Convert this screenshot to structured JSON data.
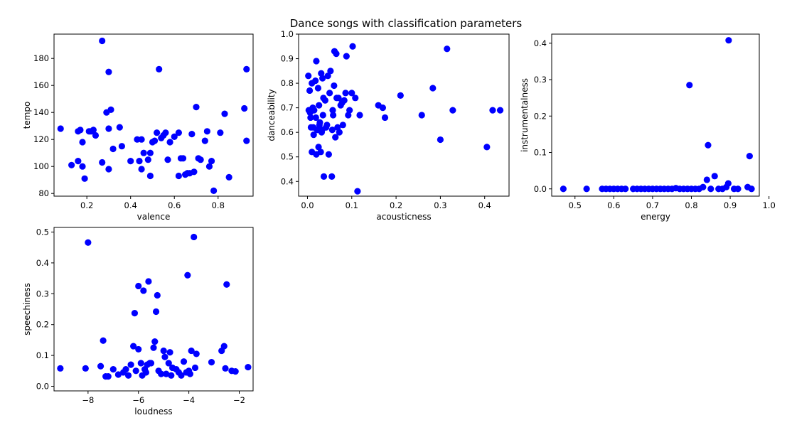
{
  "figure": {
    "title": "Dance songs with classification parameters",
    "marker_color": "#0000ff"
  },
  "chart_data": [
    {
      "type": "scatter",
      "xlabel": "valence",
      "ylabel": "tempo",
      "xlim": [
        0.05,
        0.96
      ],
      "ylim": [
        78,
        198
      ],
      "xticks": [
        0.2,
        0.4,
        0.6,
        0.8
      ],
      "xtick_labels": [
        "0.2",
        "0.4",
        "0.6",
        "0.8"
      ],
      "yticks": [
        80,
        100,
        120,
        140,
        160,
        180
      ],
      "ytick_labels": [
        "80",
        "100",
        "120",
        "140",
        "160",
        "180"
      ],
      "points": [
        [
          0.08,
          128
        ],
        [
          0.13,
          101
        ],
        [
          0.16,
          104
        ],
        [
          0.16,
          126
        ],
        [
          0.17,
          127
        ],
        [
          0.18,
          100
        ],
        [
          0.18,
          118
        ],
        [
          0.19,
          91
        ],
        [
          0.21,
          126
        ],
        [
          0.22,
          126
        ],
        [
          0.23,
          127
        ],
        [
          0.24,
          123
        ],
        [
          0.27,
          193
        ],
        [
          0.27,
          103
        ],
        [
          0.29,
          140
        ],
        [
          0.3,
          170
        ],
        [
          0.3,
          128
        ],
        [
          0.3,
          98
        ],
        [
          0.31,
          142
        ],
        [
          0.32,
          113
        ],
        [
          0.35,
          129
        ],
        [
          0.36,
          115
        ],
        [
          0.4,
          104
        ],
        [
          0.43,
          120
        ],
        [
          0.44,
          104
        ],
        [
          0.45,
          120
        ],
        [
          0.45,
          98
        ],
        [
          0.46,
          110
        ],
        [
          0.48,
          105
        ],
        [
          0.49,
          110
        ],
        [
          0.49,
          93
        ],
        [
          0.5,
          118
        ],
        [
          0.51,
          119
        ],
        [
          0.52,
          125
        ],
        [
          0.53,
          172
        ],
        [
          0.54,
          121
        ],
        [
          0.55,
          123
        ],
        [
          0.56,
          125
        ],
        [
          0.57,
          105
        ],
        [
          0.58,
          118
        ],
        [
          0.6,
          122
        ],
        [
          0.62,
          125
        ],
        [
          0.62,
          93
        ],
        [
          0.63,
          106
        ],
        [
          0.64,
          106
        ],
        [
          0.65,
          94
        ],
        [
          0.66,
          95
        ],
        [
          0.67,
          95
        ],
        [
          0.68,
          124
        ],
        [
          0.69,
          96
        ],
        [
          0.7,
          144
        ],
        [
          0.71,
          106
        ],
        [
          0.72,
          105
        ],
        [
          0.74,
          119
        ],
        [
          0.75,
          126
        ],
        [
          0.76,
          100
        ],
        [
          0.77,
          104
        ],
        [
          0.78,
          82
        ],
        [
          0.81,
          125
        ],
        [
          0.83,
          139
        ],
        [
          0.85,
          92
        ],
        [
          0.92,
          143
        ],
        [
          0.93,
          172
        ],
        [
          0.93,
          119
        ]
      ]
    },
    {
      "type": "scatter",
      "xlabel": "acousticness",
      "ylabel": "danceability",
      "xlim": [
        -0.02,
        0.455
      ],
      "ylim": [
        0.34,
        1.0
      ],
      "xticks": [
        0.0,
        0.1,
        0.2,
        0.3,
        0.4
      ],
      "xtick_labels": [
        "0.0",
        "0.1",
        "0.2",
        "0.3",
        "0.4"
      ],
      "yticks": [
        0.4,
        0.5,
        0.6,
        0.7,
        0.8,
        0.9,
        1.0
      ],
      "ytick_labels": [
        "0.4",
        "0.5",
        "0.6",
        "0.7",
        "0.8",
        "0.9",
        "1.0"
      ],
      "points": [
        [
          0.002,
          0.83
        ],
        [
          0.003,
          0.69
        ],
        [
          0.005,
          0.77
        ],
        [
          0.006,
          0.68
        ],
        [
          0.007,
          0.66
        ],
        [
          0.008,
          0.62
        ],
        [
          0.01,
          0.8
        ],
        [
          0.01,
          0.52
        ],
        [
          0.012,
          0.7
        ],
        [
          0.013,
          0.62
        ],
        [
          0.014,
          0.59
        ],
        [
          0.015,
          0.69
        ],
        [
          0.018,
          0.81
        ],
        [
          0.019,
          0.66
        ],
        [
          0.02,
          0.51
        ],
        [
          0.02,
          0.89
        ],
        [
          0.022,
          0.61
        ],
        [
          0.024,
          0.78
        ],
        [
          0.025,
          0.54
        ],
        [
          0.026,
          0.71
        ],
        [
          0.027,
          0.63
        ],
        [
          0.028,
          0.64
        ],
        [
          0.03,
          0.52
        ],
        [
          0.031,
          0.84
        ],
        [
          0.032,
          0.6
        ],
        [
          0.033,
          0.61
        ],
        [
          0.034,
          0.82
        ],
        [
          0.035,
          0.67
        ],
        [
          0.036,
          0.74
        ],
        [
          0.037,
          0.42
        ],
        [
          0.04,
          0.73
        ],
        [
          0.042,
          0.62
        ],
        [
          0.044,
          0.63
        ],
        [
          0.046,
          0.83
        ],
        [
          0.048,
          0.51
        ],
        [
          0.05,
          0.76
        ],
        [
          0.052,
          0.85
        ],
        [
          0.055,
          0.42
        ],
        [
          0.056,
          0.61
        ],
        [
          0.057,
          0.69
        ],
        [
          0.058,
          0.67
        ],
        [
          0.06,
          0.79
        ],
        [
          0.061,
          0.93
        ],
        [
          0.063,
          0.58
        ],
        [
          0.065,
          0.92
        ],
        [
          0.066,
          0.74
        ],
        [
          0.068,
          0.62
        ],
        [
          0.07,
          0.74
        ],
        [
          0.072,
          0.6
        ],
        [
          0.075,
          0.71
        ],
        [
          0.078,
          0.72
        ],
        [
          0.08,
          0.63
        ],
        [
          0.083,
          0.73
        ],
        [
          0.086,
          0.76
        ],
        [
          0.088,
          0.91
        ],
        [
          0.092,
          0.67
        ],
        [
          0.095,
          0.69
        ],
        [
          0.1,
          0.76
        ],
        [
          0.102,
          0.95
        ],
        [
          0.108,
          0.74
        ],
        [
          0.113,
          0.36
        ],
        [
          0.118,
          0.67
        ],
        [
          0.16,
          0.71
        ],
        [
          0.17,
          0.7
        ],
        [
          0.175,
          0.66
        ],
        [
          0.21,
          0.75
        ],
        [
          0.258,
          0.67
        ],
        [
          0.283,
          0.78
        ],
        [
          0.3,
          0.57
        ],
        [
          0.315,
          0.94
        ],
        [
          0.328,
          0.69
        ],
        [
          0.405,
          0.54
        ],
        [
          0.418,
          0.69
        ],
        [
          0.435,
          0.69
        ]
      ]
    },
    {
      "type": "scatter",
      "xlabel": "energy",
      "ylabel": "instrumentalness",
      "xlim": [
        0.44,
        0.975
      ],
      "ylim": [
        -0.02,
        0.425
      ],
      "xticks": [
        0.5,
        0.6,
        0.7,
        0.8,
        0.9,
        1.0
      ],
      "xtick_labels": [
        "0.5",
        "0.6",
        "0.7",
        "0.8",
        "0.9",
        "1.0"
      ],
      "yticks": [
        0.0,
        0.1,
        0.2,
        0.3,
        0.4
      ],
      "ytick_labels": [
        "0.0",
        "0.1",
        "0.2",
        "0.3",
        "0.4"
      ],
      "points": [
        [
          0.47,
          0.0
        ],
        [
          0.53,
          0.0
        ],
        [
          0.57,
          0.0
        ],
        [
          0.58,
          0.0
        ],
        [
          0.59,
          0.0
        ],
        [
          0.6,
          0.0
        ],
        [
          0.61,
          0.0
        ],
        [
          0.62,
          0.0
        ],
        [
          0.63,
          0.0
        ],
        [
          0.65,
          0.0
        ],
        [
          0.66,
          0.0
        ],
        [
          0.67,
          0.0
        ],
        [
          0.68,
          0.0
        ],
        [
          0.69,
          0.0
        ],
        [
          0.7,
          0.0
        ],
        [
          0.71,
          0.0
        ],
        [
          0.72,
          0.0
        ],
        [
          0.73,
          0.0
        ],
        [
          0.74,
          0.0
        ],
        [
          0.75,
          0.0
        ],
        [
          0.76,
          0.002
        ],
        [
          0.77,
          0.0
        ],
        [
          0.78,
          0.0
        ],
        [
          0.79,
          0.0
        ],
        [
          0.8,
          0.0
        ],
        [
          0.795,
          0.285
        ],
        [
          0.81,
          0.0
        ],
        [
          0.82,
          0.0
        ],
        [
          0.83,
          0.005
        ],
        [
          0.84,
          0.025
        ],
        [
          0.843,
          0.12
        ],
        [
          0.85,
          0.0
        ],
        [
          0.86,
          0.035
        ],
        [
          0.87,
          0.0
        ],
        [
          0.88,
          0.0
        ],
        [
          0.89,
          0.005
        ],
        [
          0.895,
          0.015
        ],
        [
          0.896,
          0.408
        ],
        [
          0.91,
          0.0
        ],
        [
          0.92,
          0.0
        ],
        [
          0.945,
          0.005
        ],
        [
          0.95,
          0.09
        ],
        [
          0.955,
          0.0
        ]
      ]
    },
    {
      "type": "scatter",
      "xlabel": "loudness",
      "ylabel": "speechiness",
      "xlim": [
        -9.35,
        -1.45
      ],
      "ylim": [
        -0.015,
        0.515
      ],
      "xticks": [
        -8,
        -6,
        -4,
        -2
      ],
      "xtick_labels": [
        "−8",
        "−6",
        "−4",
        "−2"
      ],
      "yticks": [
        0.0,
        0.1,
        0.2,
        0.3,
        0.4,
        0.5
      ],
      "ytick_labels": [
        "0.0",
        "0.1",
        "0.2",
        "0.3",
        "0.4",
        "0.5"
      ],
      "points": [
        [
          -9.1,
          0.058
        ],
        [
          -8.1,
          0.058
        ],
        [
          -8.0,
          0.466
        ],
        [
          -7.5,
          0.065
        ],
        [
          -7.4,
          0.148
        ],
        [
          -7.3,
          0.032
        ],
        [
          -7.2,
          0.032
        ],
        [
          -7.0,
          0.055
        ],
        [
          -6.8,
          0.038
        ],
        [
          -6.6,
          0.045
        ],
        [
          -6.5,
          0.055
        ],
        [
          -6.4,
          0.035
        ],
        [
          -6.3,
          0.07
        ],
        [
          -6.2,
          0.13
        ],
        [
          -6.15,
          0.237
        ],
        [
          -6.1,
          0.05
        ],
        [
          -6.0,
          0.325
        ],
        [
          -6.0,
          0.12
        ],
        [
          -5.9,
          0.075
        ],
        [
          -5.85,
          0.035
        ],
        [
          -5.8,
          0.31
        ],
        [
          -5.75,
          0.055
        ],
        [
          -5.7,
          0.045
        ],
        [
          -5.65,
          0.07
        ],
        [
          -5.6,
          0.34
        ],
        [
          -5.55,
          0.075
        ],
        [
          -5.5,
          0.075
        ],
        [
          -5.4,
          0.125
        ],
        [
          -5.35,
          0.145
        ],
        [
          -5.3,
          0.242
        ],
        [
          -5.25,
          0.295
        ],
        [
          -5.2,
          0.05
        ],
        [
          -5.1,
          0.04
        ],
        [
          -5.0,
          0.115
        ],
        [
          -4.95,
          0.095
        ],
        [
          -4.9,
          0.04
        ],
        [
          -4.8,
          0.075
        ],
        [
          -4.75,
          0.11
        ],
        [
          -4.7,
          0.035
        ],
        [
          -4.65,
          0.06
        ],
        [
          -4.5,
          0.055
        ],
        [
          -4.4,
          0.045
        ],
        [
          -4.3,
          0.035
        ],
        [
          -4.2,
          0.08
        ],
        [
          -4.1,
          0.045
        ],
        [
          -4.05,
          0.36
        ],
        [
          -4.0,
          0.05
        ],
        [
          -3.95,
          0.04
        ],
        [
          -3.9,
          0.115
        ],
        [
          -3.8,
          0.484
        ],
        [
          -3.75,
          0.06
        ],
        [
          -3.7,
          0.105
        ],
        [
          -3.1,
          0.078
        ],
        [
          -2.7,
          0.115
        ],
        [
          -2.6,
          0.13
        ],
        [
          -2.5,
          0.33
        ],
        [
          -2.55,
          0.058
        ],
        [
          -2.3,
          0.05
        ],
        [
          -2.15,
          0.048
        ],
        [
          -1.65,
          0.062
        ]
      ]
    }
  ]
}
